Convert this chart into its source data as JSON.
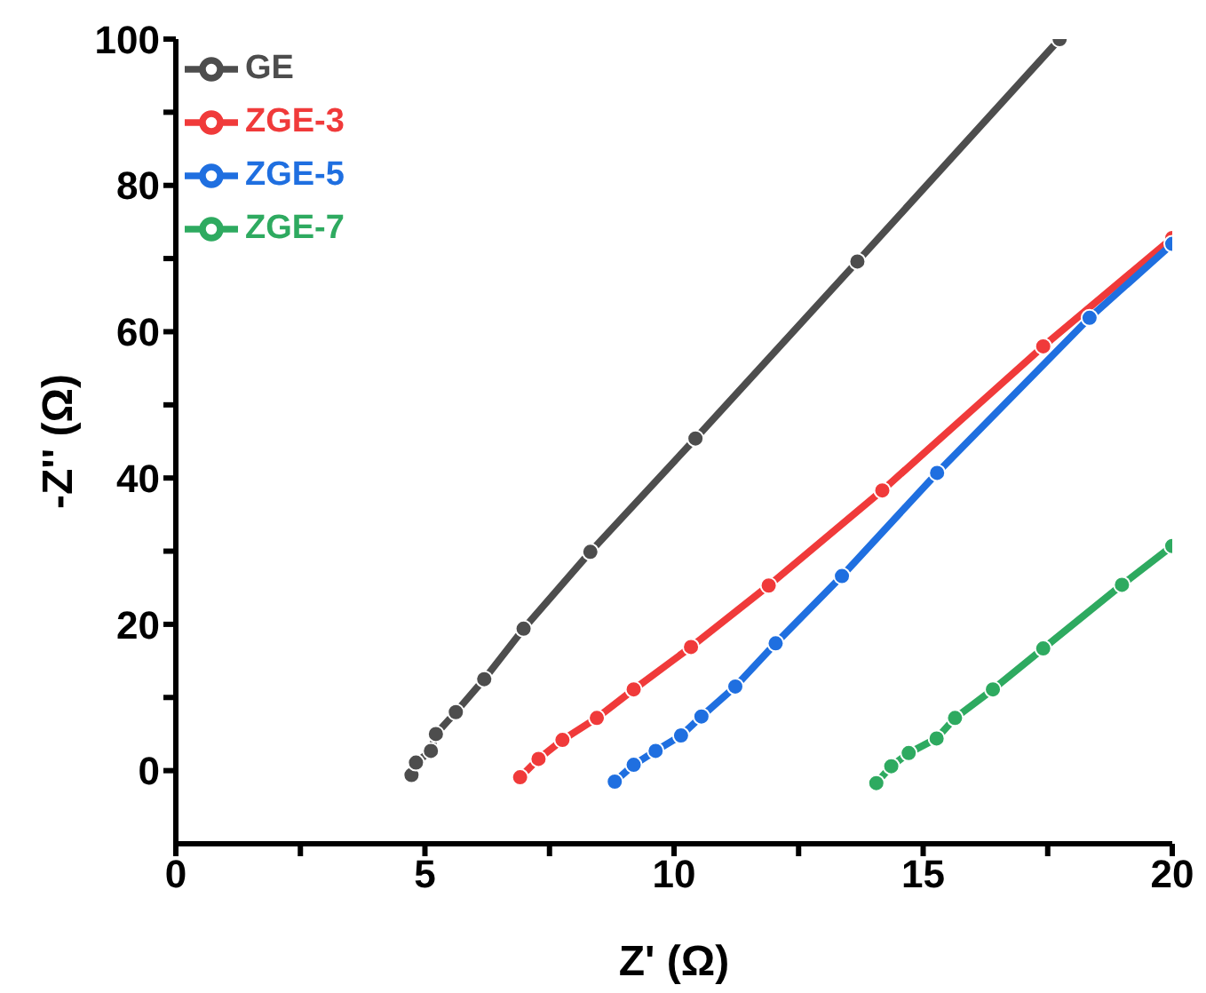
{
  "chart_data": {
    "type": "line",
    "xlabel": "Z' (Ω)",
    "ylabel": "-Z'' (Ω)",
    "xlim": [
      0,
      20
    ],
    "ylim": [
      -10,
      100
    ],
    "xticks": [
      0,
      {
        "value": 2.5,
        "label": null
      },
      5,
      {
        "value": 7.5,
        "label": null
      },
      10,
      {
        "value": 12.5,
        "label": null
      },
      15,
      {
        "value": 17.5,
        "label": null
      },
      20
    ],
    "yticks": [
      0,
      {
        "value": 10,
        "label": null
      },
      20,
      {
        "value": 30,
        "label": null
      },
      40,
      {
        "value": 50,
        "label": null
      },
      60,
      {
        "value": 70,
        "label": null
      },
      80,
      {
        "value": 90,
        "label": null
      },
      100
    ],
    "grid": false,
    "legend": "top left",
    "marker": "circle",
    "line_style": "solid",
    "series": [
      {
        "name": "GE",
        "color": "#4d4d4d",
        "x": [
          4.73,
          4.82,
          5.12,
          5.22,
          5.62,
          6.19,
          6.98,
          8.32,
          10.43,
          13.68,
          17.74
        ],
        "values": [
          -0.6,
          1.1,
          2.7,
          5.0,
          8.0,
          12.5,
          19.4,
          29.9,
          45.4,
          69.6,
          100
        ]
      },
      {
        "name": "ZGE-3",
        "color": "#f03a3a",
        "x": [
          6.91,
          7.28,
          7.76,
          8.45,
          9.19,
          10.34,
          11.9,
          14.18,
          17.41,
          20
        ],
        "values": [
          -0.9,
          1.6,
          4.2,
          7.2,
          11.1,
          16.9,
          25.3,
          38.3,
          58.0,
          72.8
        ]
      },
      {
        "name": "ZGE-5",
        "color": "#1f6fe0",
        "x": [
          8.81,
          9.19,
          9.63,
          10.14,
          10.55,
          11.23,
          12.04,
          13.37,
          15.28,
          18.34,
          20
        ],
        "values": [
          -1.5,
          0.8,
          2.7,
          4.8,
          7.4,
          11.5,
          17.4,
          26.6,
          40.7,
          61.9,
          72.0
        ]
      },
      {
        "name": "ZGE-7",
        "color": "#2eaa60",
        "x": [
          14.06,
          14.36,
          14.71,
          15.27,
          15.64,
          16.4,
          17.41,
          18.99,
          20
        ],
        "values": [
          -1.7,
          0.6,
          2.4,
          4.4,
          7.2,
          11.1,
          16.7,
          25.4,
          30.7
        ]
      }
    ]
  }
}
